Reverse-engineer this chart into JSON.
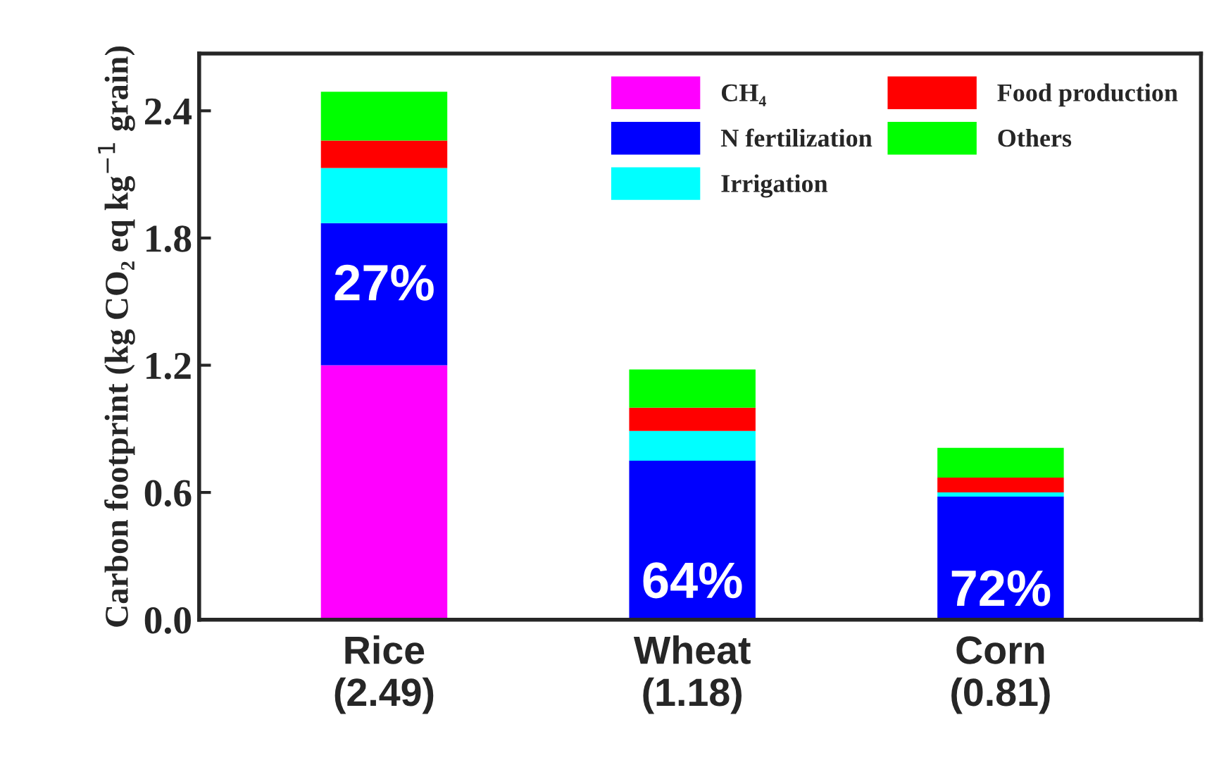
{
  "chart_data": {
    "type": "bar",
    "stacked": true,
    "ylabel": "Carbon footprint (kg CO₂ eq kg$^{−1}$ grain)",
    "categories": [
      "Rice\n(2.49)",
      "Wheat\n(1.18)",
      "Corn\n(0.81)"
    ],
    "series": [
      {
        "name": "CH₄",
        "color": "#ff00ff",
        "values": [
          1.2,
          0,
          0
        ]
      },
      {
        "name": "N fertilization",
        "color": "#0000ff",
        "values": [
          0.67,
          0.75,
          0.58
        ]
      },
      {
        "name": "Irrigation",
        "color": "#00ffff",
        "values": [
          0.26,
          0.14,
          0.02
        ]
      },
      {
        "name": "Food production",
        "color": "#ff0000",
        "values": [
          0.13,
          0.11,
          0.07
        ]
      },
      {
        "name": "Others",
        "color": "#00ff00",
        "values": [
          0.23,
          0.18,
          0.14
        ]
      }
    ],
    "ylim": [
      0,
      2.67
    ],
    "yticks": [
      {
        "value": 0,
        "label": "0.0"
      },
      0.6,
      1.2,
      1.8,
      2.4
    ],
    "annotations": [
      "27%",
      "64%",
      "72%"
    ],
    "legend": "top right",
    "grid": false
  }
}
